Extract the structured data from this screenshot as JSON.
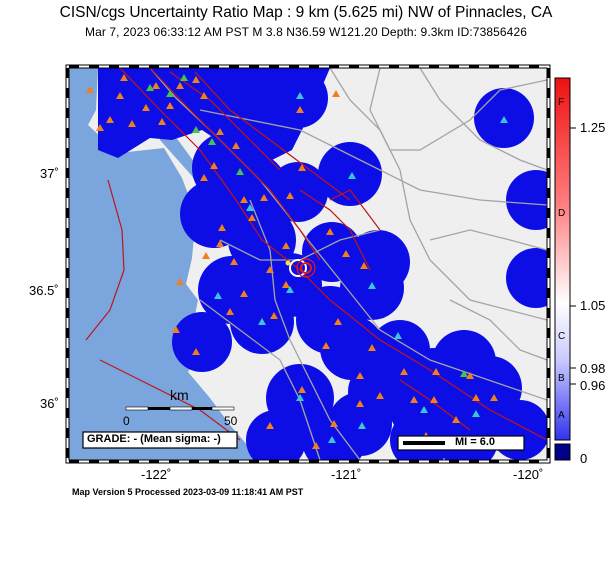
{
  "header": {
    "title": "CISN/cgs Uncertainty Ratio Map : 9 km (5.625 mi) NW of Pinnacles, CA",
    "subtitle": "Mar  7, 2023 06:33:12 AM PST   M 3.8   N36.59 W121.20   Depth: 9.3km   ID:73856426"
  },
  "map": {
    "lat_labels": [
      "37˚",
      "36.5˚",
      "36˚"
    ],
    "lon_labels": [
      "-122˚",
      "-121˚",
      "-120˚"
    ],
    "scale_bar": {
      "unit": "km",
      "start": "0",
      "end": "50"
    },
    "grade_box": "GRADE: - (Mean sigma: -)",
    "mi_box": "MI = 6.0",
    "colors": {
      "ocean": "#7aa6dd",
      "land": "#efefef",
      "uncertainty_blue": "#0d0ee6",
      "roads": "#a4a4a4",
      "faults": "#c0141c",
      "station_triangle": "#f07f1c",
      "cyan_station": "#38c7d8",
      "green_station": "#41c54a"
    }
  },
  "colorbar": {
    "letters": [
      "F",
      "D",
      "C",
      "B",
      "A"
    ],
    "values": [
      "1.25",
      "1.05",
      "0.98",
      "0.96",
      "0"
    ]
  },
  "footer": "Map Version 5 Processed 2023-03-09 11:18:41 AM PST"
}
